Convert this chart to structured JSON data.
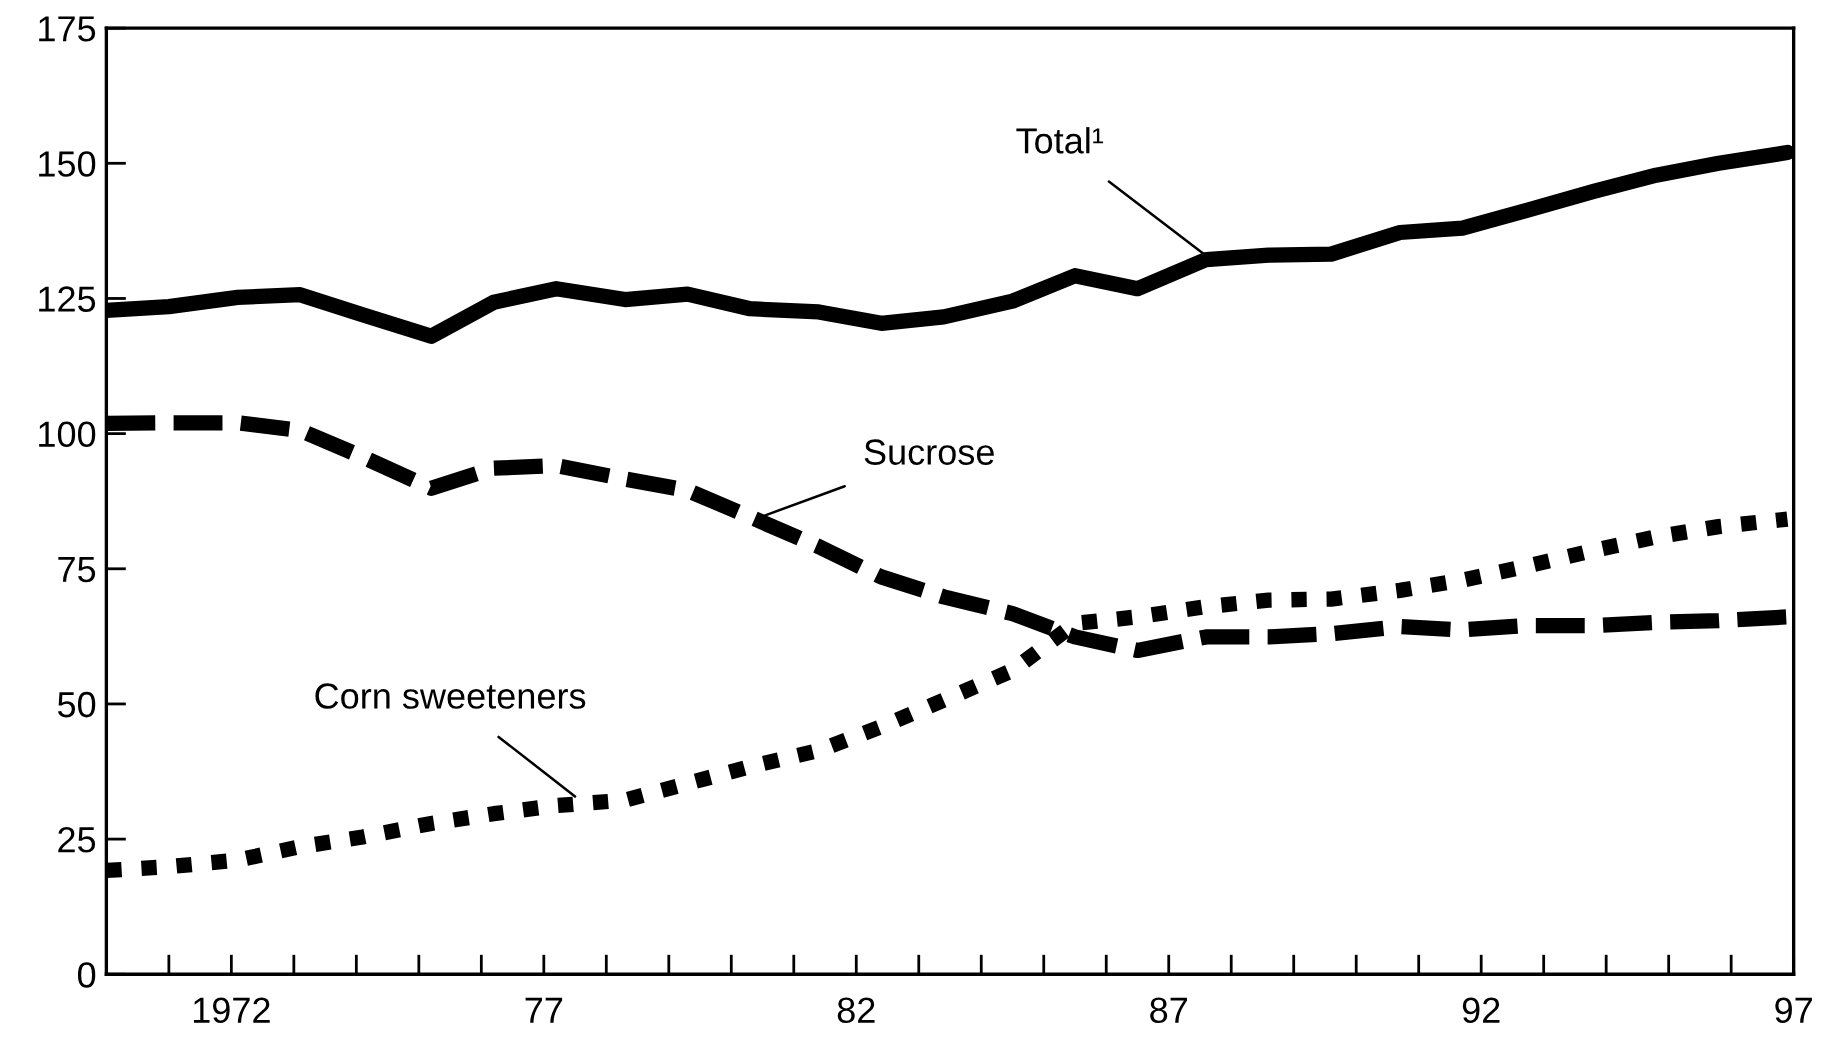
{
  "chart_data": {
    "type": "line",
    "x": [
      1970.0,
      1971.0,
      1972.1,
      1973.1,
      1974.1,
      1975.2,
      1976.2,
      1977.2,
      1978.3,
      1979.3,
      1980.3,
      1981.4,
      1982.4,
      1983.4,
      1984.5,
      1985.5,
      1986.5,
      1987.6,
      1988.6,
      1989.6,
      1990.7,
      1991.7,
      1992.7,
      1993.8,
      1994.8,
      1995.8,
      1996.9
    ],
    "series": [
      {
        "color": "#000000",
        "line_style": "solid",
        "values": [
          122.8,
          123.5,
          125.2,
          125.7,
          122,
          118,
          124.3,
          126.8,
          124.8,
          125.8,
          123.1,
          122.5,
          120.4,
          121.6,
          124.5,
          129.2,
          126.8,
          132.2,
          133,
          133.2,
          137.2,
          138,
          141.2,
          144.8,
          147.8,
          150,
          152
        ]
      },
      {
        "color": "#000000",
        "line_style": "dashed",
        "values": [
          101.9,
          102,
          102,
          100.6,
          95.7,
          89.9,
          93.6,
          94.1,
          91.6,
          89.5,
          84.6,
          79.1,
          73.5,
          69.8,
          66.7,
          62.4,
          59.9,
          62.4,
          62.4,
          63,
          64.3,
          63.7,
          64.5,
          64.5,
          65.1,
          65.4,
          66.1
        ]
      },
      {
        "color": "#000000",
        "line_style": "dotted",
        "values": [
          19.2,
          19.9,
          21.1,
          23.6,
          25.4,
          27.9,
          29.7,
          31.2,
          32.2,
          35.3,
          38.4,
          41.4,
          45.8,
          50.7,
          56.2,
          64.9,
          66.1,
          68,
          69.2,
          69.4,
          71,
          72.9,
          75.4,
          78.4,
          80.9,
          82.8,
          84.2
        ]
      }
    ],
    "annotations": [
      {
        "text": "Total¹",
        "x": 1987.7,
        "y": 132
      },
      {
        "text": "Sucrose",
        "x": 1980.5,
        "y": 84.7
      },
      {
        "text": "Corn sweeteners",
        "x": 1977.5,
        "y": 32.9
      }
    ],
    "xlim": [
      1970,
      1997
    ],
    "xticks": [
      {
        "value": 1971,
        "label": null
      },
      {
        "value": 1972,
        "label": "1972"
      },
      {
        "value": 1973,
        "label": null
      },
      {
        "value": 1974,
        "label": null
      },
      {
        "value": 1975,
        "label": null
      },
      {
        "value": 1976,
        "label": null
      },
      {
        "value": 1977,
        "label": "77"
      },
      {
        "value": 1978,
        "label": null
      },
      {
        "value": 1979,
        "label": null
      },
      {
        "value": 1980,
        "label": null
      },
      {
        "value": 1981,
        "label": null
      },
      {
        "value": 1982,
        "label": "82"
      },
      {
        "value": 1983,
        "label": null
      },
      {
        "value": 1984,
        "label": null
      },
      {
        "value": 1985,
        "label": null
      },
      {
        "value": 1986,
        "label": null
      },
      {
        "value": 1987,
        "label": "87"
      },
      {
        "value": 1988,
        "label": null
      },
      {
        "value": 1989,
        "label": null
      },
      {
        "value": 1990,
        "label": null
      },
      {
        "value": 1991,
        "label": null
      },
      {
        "value": 1992,
        "label": "92"
      },
      {
        "value": 1993,
        "label": null
      },
      {
        "value": 1994,
        "label": null
      },
      {
        "value": 1995,
        "label": null
      },
      {
        "value": 1996,
        "label": null
      },
      {
        "value": 1997,
        "label": "97"
      }
    ],
    "ylim": [
      0,
      175
    ],
    "yticks": [
      0,
      25,
      50,
      75,
      100,
      125,
      150,
      175
    ],
    "grid": false,
    "legend": false
  }
}
